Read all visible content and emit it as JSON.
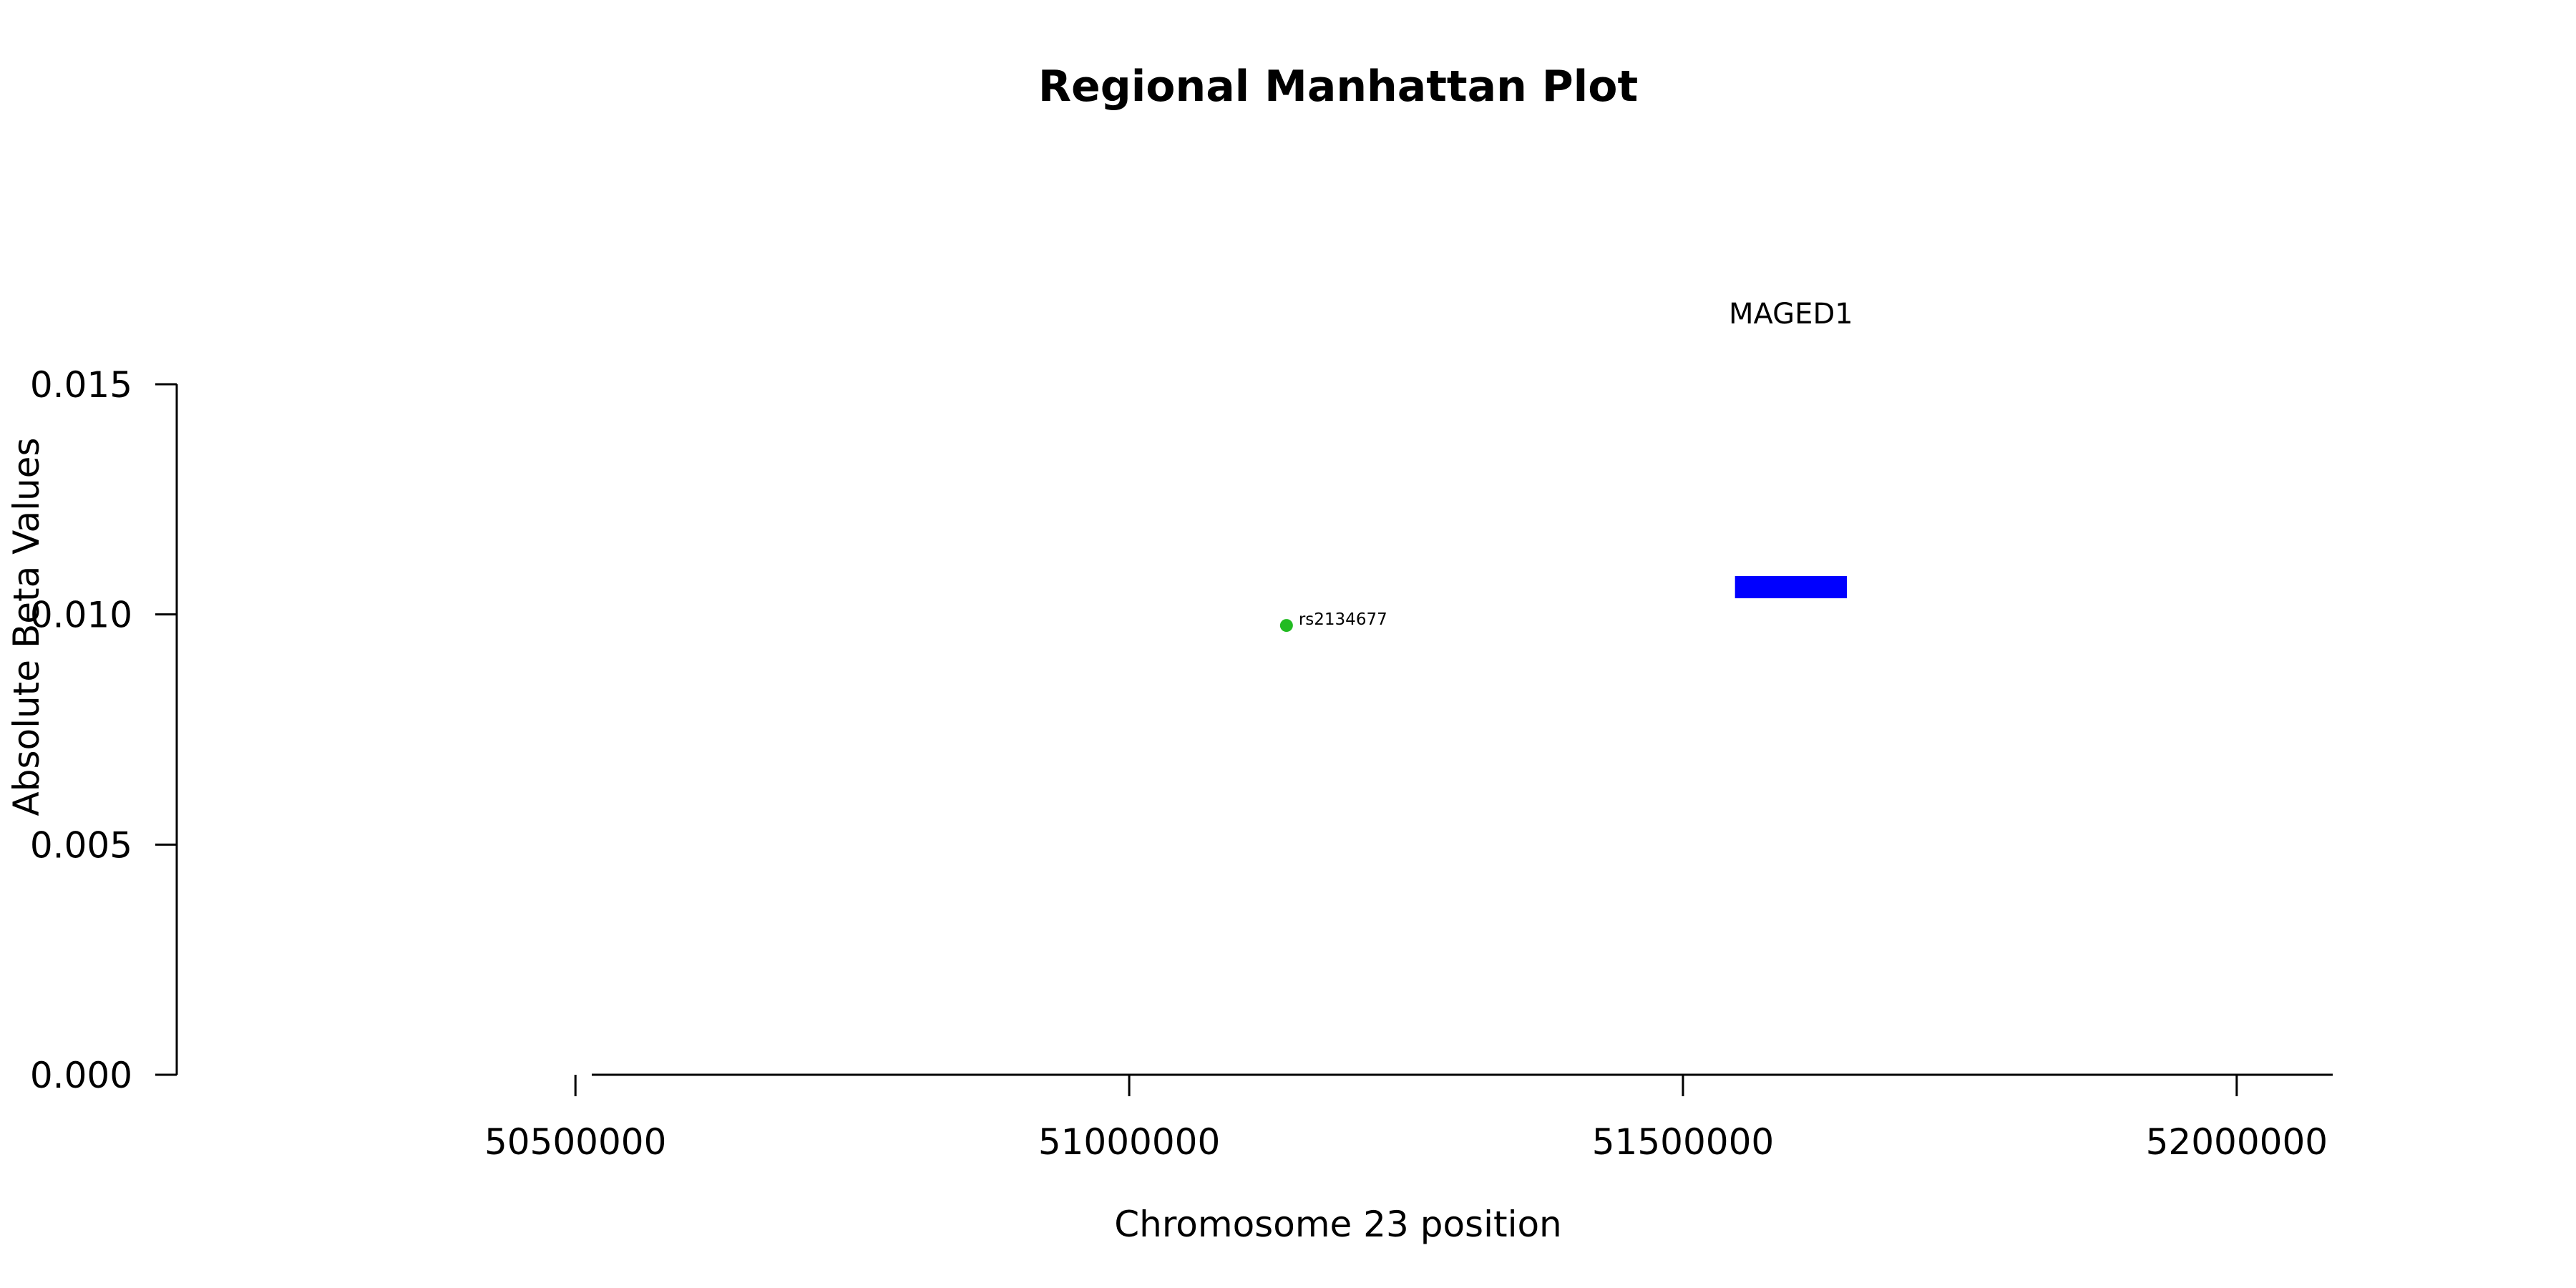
{
  "chart_data": {
    "type": "scatter",
    "title": "Regional Manhattan Plot",
    "xlabel": "Chromosome 23 position",
    "ylabel": "Absolute Beta Values",
    "xlim": [
      50140000,
      52150000
    ],
    "ylim": [
      0,
      0.015
    ],
    "x_ticks": [
      50500000,
      51000000,
      51500000,
      52000000
    ],
    "x_tick_labels": [
      "50500000",
      "51000000",
      "51500000",
      "52000000"
    ],
    "y_ticks": [
      0,
      0.005,
      0.01,
      0.015
    ],
    "y_tick_labels": [
      "0.000",
      "0.005",
      "0.010",
      "0.015"
    ],
    "grid": false,
    "legend": "none",
    "series": [
      {
        "points": [
          {
            "x": 51142000,
            "y": 0.00976,
            "label": "rs2134677",
            "color": "#22bb22"
          }
        ]
      }
    ],
    "genes": [
      {
        "name": "MAGED1",
        "start": 51547000,
        "end": 51648000,
        "y": 0.0106,
        "color": "#0000ff"
      }
    ]
  }
}
